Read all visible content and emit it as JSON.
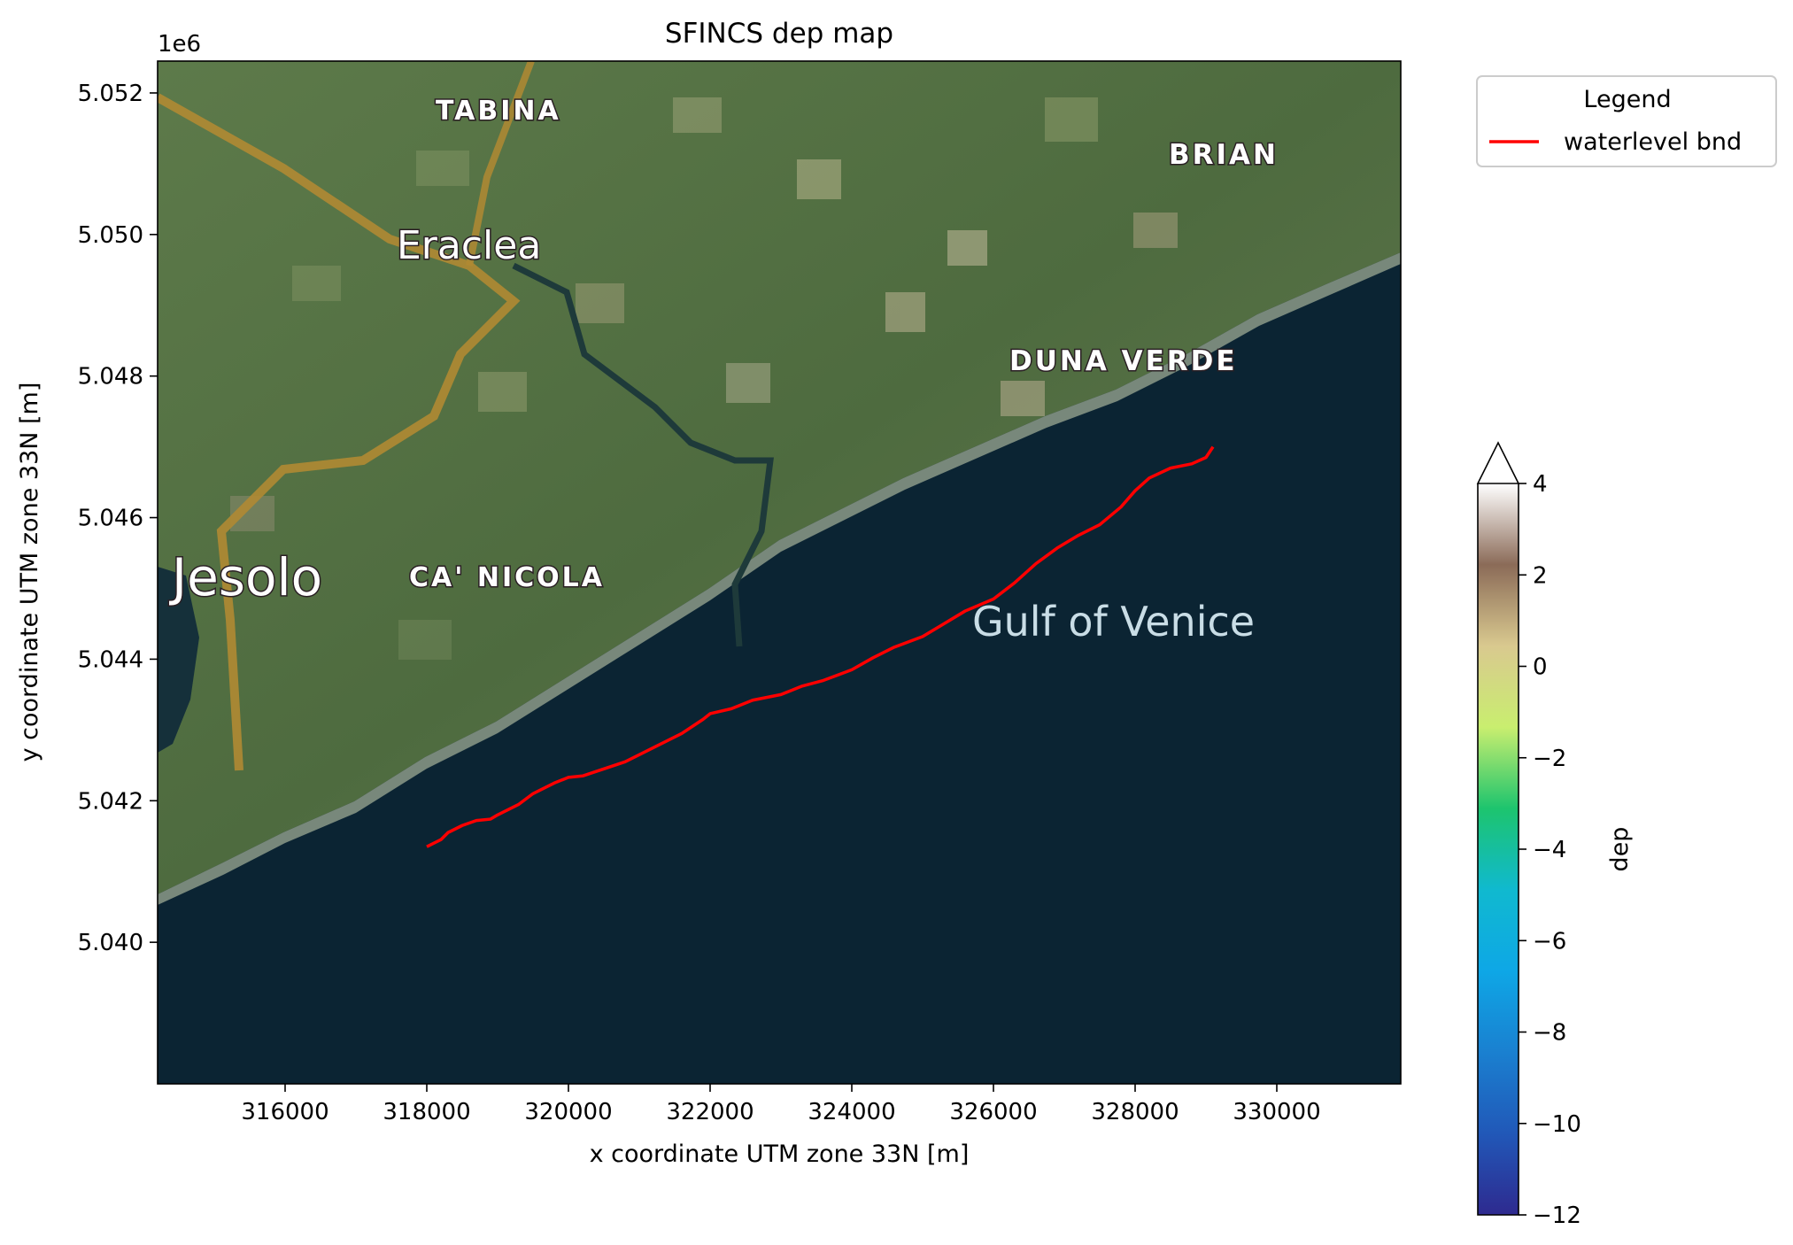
{
  "chart_data": {
    "type": "line",
    "title": "SFINCS dep map",
    "xlabel": "x coordinate UTM zone 33N [m]",
    "ylabel": "y coordinate UTM zone 33N [m]",
    "y_offset_label": "1e6",
    "xlim": [
      314200,
      331750
    ],
    "ylim": [
      5038000,
      5052450
    ],
    "x_ticks": [
      316000,
      318000,
      320000,
      322000,
      324000,
      326000,
      328000,
      330000
    ],
    "x_tick_labels": [
      "316000",
      "318000",
      "320000",
      "322000",
      "324000",
      "326000",
      "328000",
      "330000"
    ],
    "y_ticks": [
      5040000,
      5042000,
      5044000,
      5046000,
      5048000,
      5050000,
      5052000
    ],
    "y_tick_labels": [
      "5.040",
      "5.042",
      "5.044",
      "5.046",
      "5.048",
      "5.050",
      "5.052"
    ],
    "grid": false,
    "legend": {
      "title": "Legend",
      "placement": "outside upper-right",
      "entries": [
        {
          "label": "waterlevel bnd",
          "color": "#ff0000"
        }
      ]
    },
    "series": [
      {
        "name": "waterlevel bnd",
        "color": "#ff0000",
        "x": [
          318000,
          318200,
          318300,
          318500,
          318700,
          318900,
          319000,
          319300,
          319500,
          319800,
          320000,
          320200,
          320500,
          320800,
          321000,
          321300,
          321600,
          321900,
          322000,
          322300,
          322600,
          323000,
          323300,
          323600,
          324000,
          324300,
          324600,
          325000,
          325300,
          325600,
          326000,
          326300,
          326600,
          326900,
          327200,
          327500,
          327800,
          328000,
          328200,
          328500,
          328800,
          329000,
          329100
        ],
        "y": [
          5041350,
          5041450,
          5041550,
          5041650,
          5041720,
          5041740,
          5041800,
          5041950,
          5042100,
          5042250,
          5042330,
          5042350,
          5042450,
          5042550,
          5042650,
          5042800,
          5042950,
          5043150,
          5043230,
          5043300,
          5043420,
          5043500,
          5043620,
          5043700,
          5043850,
          5044020,
          5044170,
          5044320,
          5044500,
          5044680,
          5044850,
          5045080,
          5045350,
          5045570,
          5045750,
          5045900,
          5046150,
          5046380,
          5046560,
          5046700,
          5046760,
          5046850,
          5047000
        ]
      }
    ],
    "map_labels": [
      "TABINA",
      "BRIAN",
      "Eraclea",
      "DUNA VERDE",
      "Jesolo",
      "CA' NICOLA",
      "Gulf of Venice"
    ],
    "colorbar": {
      "label": "dep",
      "range": [
        -12,
        4
      ],
      "ticks": [
        4,
        2,
        0,
        -2,
        -4,
        -6,
        -8,
        -10,
        -12
      ],
      "tick_labels": [
        "4",
        "2",
        "0",
        "−2",
        "−4",
        "−6",
        "−8",
        "−10",
        "−12"
      ],
      "extend": "max",
      "colors": [
        "#2e2a8f",
        "#2158b8",
        "#1a80d0",
        "#0ea7e6",
        "#10b9cf",
        "#1dc46e",
        "#c9ee6f",
        "#d9c98f",
        "#8b6b58",
        "#ffffff"
      ]
    },
    "colors": {
      "sea": "#0b2433",
      "land": "#4d6a40",
      "shore": "#8c9a88",
      "road": "#b08a33",
      "river": "#1e3a3a"
    }
  }
}
